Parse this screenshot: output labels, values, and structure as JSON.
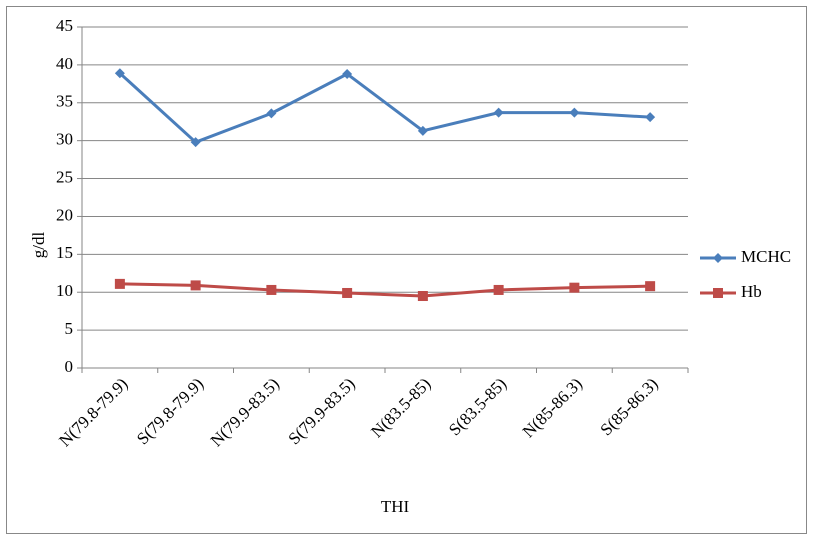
{
  "chart_data": {
    "type": "line",
    "x_label": "THI",
    "y_label": "g/dl",
    "categories": [
      "N(79.8-79.9)",
      "S(79.8-79.9)",
      "N(79.9-83.5)",
      "S(79.9-83.5)",
      "N(83.5-85)",
      "S(83.5-85)",
      "N(85-86.3)",
      "S(85-86.3)"
    ],
    "series": [
      {
        "name": "MCHC",
        "color": "#4a7ebb",
        "marker": "diamond",
        "values": [
          38.9,
          29.8,
          33.6,
          38.8,
          31.3,
          33.7,
          33.7,
          33.1
        ]
      },
      {
        "name": "Hb",
        "color": "#be4b48",
        "marker": "square",
        "values": [
          11.1,
          10.9,
          10.3,
          9.9,
          9.5,
          10.3,
          10.6,
          10.8
        ]
      }
    ],
    "ylim": [
      0,
      45
    ],
    "yticks": [
      0,
      5,
      10,
      15,
      20,
      25,
      30,
      35,
      40,
      45
    ],
    "grid": true,
    "legend": "right"
  }
}
